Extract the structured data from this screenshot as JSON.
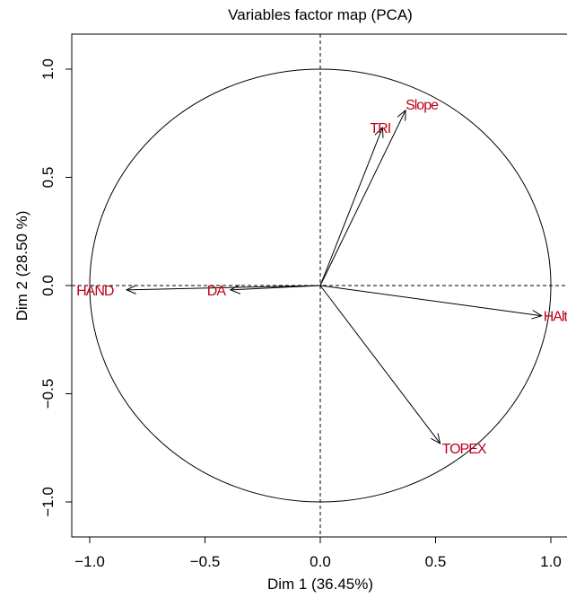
{
  "chart_data": {
    "type": "scatter",
    "title": "Variables factor map (PCA)",
    "xlabel": "Dim 1 (36.45%)",
    "ylabel": "Dim 2 (28.50 %)",
    "xlim": [
      -1.1,
      1.1
    ],
    "ylim": [
      -1.1,
      1.1
    ],
    "xticks": [
      -1.0,
      -0.5,
      0.0,
      0.5,
      1.0
    ],
    "yticks": [
      -1.0,
      -0.5,
      0.0,
      0.5,
      1.0
    ],
    "xtick_labels": [
      "−1.0",
      "−0.5",
      "0.0",
      "0.5",
      "1.0"
    ],
    "ytick_labels": [
      "−1.0",
      "−0.5",
      "0.0",
      "0.5",
      "1.0"
    ],
    "unit_circle": true,
    "reference_lines": {
      "x": 0,
      "y": 0,
      "style": "dashed"
    },
    "arrow_color": "#000000",
    "label_color": "#c0001a",
    "variables": [
      {
        "name": "TRI",
        "x": 0.27,
        "y": 0.73
      },
      {
        "name": "Slope",
        "x": 0.37,
        "y": 0.81
      },
      {
        "name": "HAND",
        "x": -0.84,
        "y": -0.02
      },
      {
        "name": "DA",
        "x": -0.39,
        "y": -0.02
      },
      {
        "name": "HAlt",
        "x": 0.96,
        "y": -0.14
      },
      {
        "name": "TOPEX",
        "x": 0.52,
        "y": -0.73
      }
    ]
  }
}
